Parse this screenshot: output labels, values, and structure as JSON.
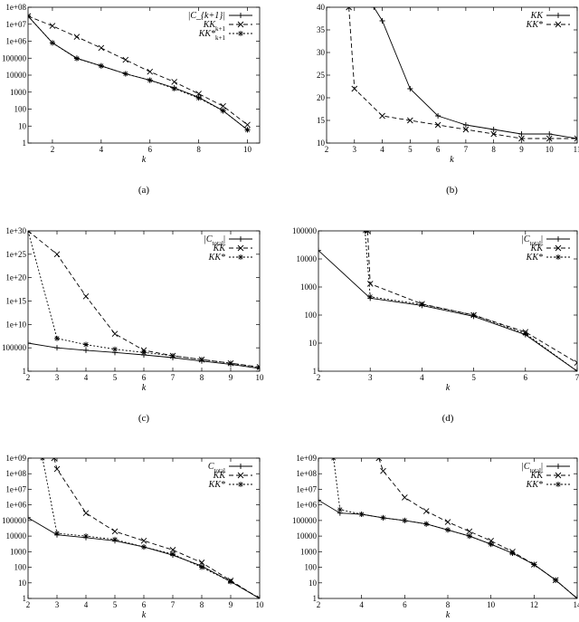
{
  "chart_data": [
    {
      "id": "a",
      "type": "line",
      "caption": "(a)",
      "xlabel": "k",
      "ylabel": "",
      "yscale": "log",
      "xlim": [
        1,
        10.5
      ],
      "ylim": [
        1,
        100000000
      ],
      "x_ticks": [
        "2",
        "4",
        "6",
        "8",
        "10"
      ],
      "y_ticks": [
        "1",
        "10",
        "100",
        "1000",
        "10000",
        "100000",
        "1e+06",
        "1e+07",
        "1e+08"
      ],
      "legend_position": "top-right",
      "series": [
        {
          "name": "|C_{k+1}|",
          "style": "solid",
          "marker": "plus",
          "x": [
            1,
            2,
            3,
            4,
            5,
            6,
            7,
            8,
            9,
            10
          ],
          "y": [
            30000000,
            800000,
            100000,
            35000,
            12000,
            5000,
            1800,
            500,
            80,
            6
          ]
        },
        {
          "name": "KK_{k+1}",
          "style": "dashed",
          "marker": "x",
          "x": [
            1,
            2,
            3,
            4,
            5,
            6,
            7,
            8,
            9,
            10
          ],
          "y": [
            30000000,
            8000000,
            1800000,
            400000,
            80000,
            16000,
            4000,
            800,
            150,
            12
          ]
        },
        {
          "name": "KK*_{k+1}",
          "style": "dotted",
          "marker": "star",
          "x": [
            1,
            2,
            3,
            4,
            5,
            6,
            7,
            8,
            9,
            10
          ],
          "y": [
            30000000,
            800000,
            95000,
            35000,
            12000,
            5000,
            1600,
            450,
            80,
            6
          ]
        }
      ]
    },
    {
      "id": "b",
      "type": "line",
      "caption": "(b)",
      "xlabel": "k",
      "ylabel": "",
      "yscale": "linear",
      "xlim": [
        2,
        11
      ],
      "ylim": [
        10,
        40
      ],
      "x_ticks": [
        "2",
        "3",
        "4",
        "5",
        "6",
        "7",
        "8",
        "9",
        "10",
        "11"
      ],
      "y_ticks": [
        "10",
        "15",
        "20",
        "25",
        "30",
        "35",
        "40"
      ],
      "legend_position": "top-right",
      "series": [
        {
          "name": "KK",
          "style": "solid",
          "marker": "plus",
          "x": [
            3.7,
            4,
            5,
            6,
            7,
            8,
            9,
            10,
            11
          ],
          "y": [
            40,
            37,
            22,
            16,
            14,
            13,
            12,
            12,
            11
          ]
        },
        {
          "name": "KK*",
          "style": "dashed",
          "marker": "x",
          "x": [
            2.8,
            3,
            4,
            5,
            6,
            7,
            8,
            9,
            10,
            11
          ],
          "y": [
            40,
            22,
            16,
            15,
            14,
            13,
            12,
            11,
            11,
            11
          ]
        }
      ]
    },
    {
      "id": "c",
      "type": "line",
      "caption": "(c)",
      "xlabel": "k",
      "ylabel": "",
      "yscale": "log",
      "xlim": [
        2,
        10
      ],
      "ylim": [
        1,
        1e+30
      ],
      "x_ticks": [
        "2",
        "3",
        "4",
        "5",
        "6",
        "7",
        "8",
        "9",
        "10"
      ],
      "y_ticks": [
        "1",
        "100000",
        "1e+10",
        "1e+15",
        "1e+20",
        "1e+25",
        "1e+30"
      ],
      "legend_position": "top-right",
      "series": [
        {
          "name": "|C_total|",
          "style": "solid",
          "marker": "plus",
          "x": [
            2,
            3,
            4,
            5,
            6,
            7,
            8,
            9,
            10
          ],
          "y": [
            1000000.0,
            100000.0,
            30000.0,
            10000.0,
            3000.0,
            800,
            150,
            30,
            4
          ]
        },
        {
          "name": "KK",
          "style": "dashed",
          "marker": "x",
          "x": [
            2,
            3,
            4,
            5,
            6,
            7,
            8,
            9,
            10
          ],
          "y": [
            1e+30,
            1e+25,
            1e+16,
            100000000.0,
            30000.0,
            2000.0,
            300,
            50,
            8
          ]
        },
        {
          "name": "KK*",
          "style": "dotted",
          "marker": "star",
          "x": [
            2,
            3,
            4,
            5,
            6,
            7,
            8,
            9,
            10
          ],
          "y": [
            1e+30,
            10000000.0,
            500000.0,
            50000.0,
            10000.0,
            2000.0,
            300,
            50,
            6
          ]
        }
      ]
    },
    {
      "id": "d",
      "type": "line",
      "caption": "(d)",
      "xlabel": "k",
      "ylabel": "",
      "yscale": "log",
      "xlim": [
        2,
        7
      ],
      "ylim": [
        1,
        100000
      ],
      "x_ticks": [
        "2",
        "3",
        "4",
        "5",
        "6",
        "7"
      ],
      "y_ticks": [
        "1",
        "10",
        "100",
        "1000",
        "10000",
        "100000"
      ],
      "legend_position": "top-right",
      "series": [
        {
          "name": "|C_total|",
          "style": "solid",
          "marker": "plus",
          "x": [
            2,
            3,
            4,
            5,
            6,
            7
          ],
          "y": [
            20000,
            400,
            220,
            90,
            20,
            1
          ]
        },
        {
          "name": "KK",
          "style": "dashed",
          "marker": "x",
          "x": [
            2.95,
            3,
            4,
            5,
            6,
            7
          ],
          "y": [
            100000,
            1300,
            250,
            100,
            25,
            2
          ]
        },
        {
          "name": "KK*",
          "style": "dotted",
          "marker": "star",
          "x": [
            2.9,
            3,
            4,
            5,
            6,
            7
          ],
          "y": [
            100000,
            450,
            240,
            100,
            22,
            1
          ]
        }
      ]
    },
    {
      "id": "e",
      "type": "line",
      "caption": "",
      "xlabel": "k",
      "ylabel": "",
      "yscale": "log",
      "xlim": [
        2,
        10
      ],
      "ylim": [
        1,
        1000000000
      ],
      "x_ticks": [
        "2",
        "3",
        "4",
        "5",
        "6",
        "7",
        "8",
        "9",
        "10"
      ],
      "y_ticks": [
        "1",
        "10",
        "100",
        "1000",
        "10000",
        "100000",
        "1e+06",
        "1e+07",
        "1e+08",
        "1e+09"
      ],
      "legend_position": "top-right",
      "series": [
        {
          "name": "C_total",
          "style": "solid",
          "marker": "plus",
          "x": [
            2,
            3,
            4,
            5,
            6,
            7,
            8,
            9,
            10
          ],
          "y": [
            150000,
            12000,
            8000,
            5000,
            2000,
            600,
            120,
            12,
            1
          ]
        },
        {
          "name": "KK",
          "style": "dashed",
          "marker": "x",
          "x": [
            2.9,
            3,
            4,
            5,
            6,
            7,
            8,
            9,
            10
          ],
          "y": [
            1000000000,
            200000000,
            300000,
            20000,
            5000,
            1300,
            200,
            14,
            1
          ]
        },
        {
          "name": "KK*",
          "style": "dotted",
          "marker": "star",
          "x": [
            2.5,
            3,
            4,
            5,
            6,
            7,
            8,
            9,
            10
          ],
          "y": [
            1000000000,
            15000,
            10000,
            6000,
            2000,
            700,
            100,
            12,
            1
          ]
        }
      ]
    },
    {
      "id": "f",
      "type": "line",
      "caption": "",
      "xlabel": "k",
      "ylabel": "",
      "yscale": "log",
      "xlim": [
        2,
        14
      ],
      "ylim": [
        1,
        1000000000
      ],
      "x_ticks": [
        "2",
        "4",
        "6",
        "8",
        "10",
        "12",
        "14"
      ],
      "y_ticks": [
        "1",
        "10",
        "100",
        "1000",
        "10000",
        "100000",
        "1e+06",
        "1e+07",
        "1e+08",
        "1e+09"
      ],
      "legend_position": "top-right",
      "series": [
        {
          "name": "|C_total|",
          "style": "solid",
          "marker": "plus",
          "x": [
            2,
            3,
            4,
            5,
            6,
            7,
            8,
            9,
            10,
            11,
            12,
            13,
            14
          ],
          "y": [
            2000000,
            300000,
            250000,
            150000,
            100000,
            60000,
            25000,
            10000,
            3000,
            800,
            150,
            15,
            1
          ]
        },
        {
          "name": "KK",
          "style": "dashed",
          "marker": "x",
          "x": [
            4.8,
            5,
            6,
            7,
            8,
            9,
            10,
            11,
            12,
            13,
            14
          ],
          "y": [
            1000000000,
            150000000,
            3000000,
            400000,
            80000,
            20000,
            5000,
            1000,
            150,
            15,
            1
          ]
        },
        {
          "name": "KK*",
          "style": "dotted",
          "marker": "star",
          "x": [
            2.7,
            3,
            4,
            5,
            6,
            7,
            8,
            9,
            10,
            11,
            12,
            13,
            14
          ],
          "y": [
            1000000000,
            500000,
            250000,
            150000,
            100000,
            60000,
            25000,
            10000,
            3000,
            800,
            150,
            15,
            1
          ]
        }
      ]
    }
  ]
}
